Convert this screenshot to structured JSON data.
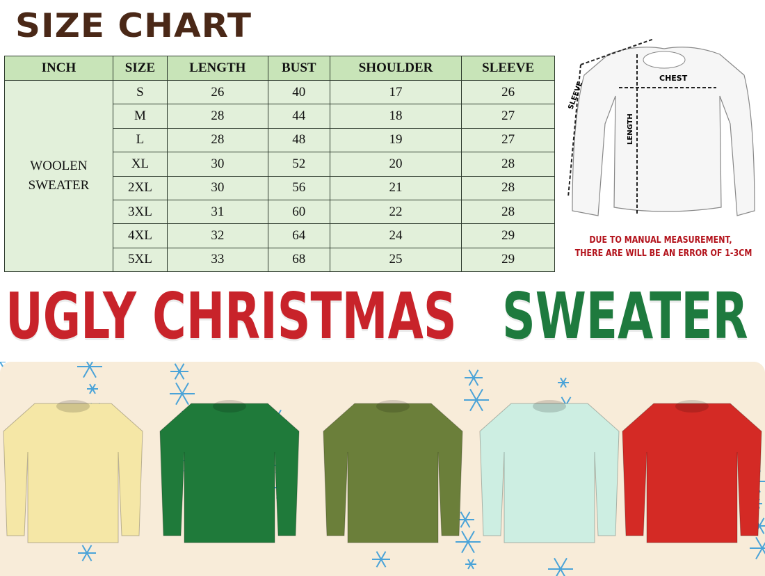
{
  "title": "SIZE CHART",
  "table": {
    "headers": [
      "INCH",
      "SIZE",
      "LENGTH",
      "BUST",
      "SHOULDER",
      "SLEEVE"
    ],
    "category_line1": "WOOLEN",
    "category_line2": "SWEATER",
    "rows": [
      [
        "S",
        "26",
        "40",
        "17",
        "26"
      ],
      [
        "M",
        "28",
        "44",
        "18",
        "27"
      ],
      [
        "L",
        "28",
        "48",
        "19",
        "27"
      ],
      [
        "XL",
        "30",
        "52",
        "20",
        "28"
      ],
      [
        "2XL",
        "30",
        "56",
        "21",
        "28"
      ],
      [
        "3XL",
        "31",
        "60",
        "22",
        "28"
      ],
      [
        "4XL",
        "32",
        "64",
        "24",
        "29"
      ],
      [
        "5XL",
        "33",
        "68",
        "25",
        "29"
      ]
    ]
  },
  "diagram": {
    "chest": "CHEST",
    "length": "LENGTH",
    "sleeve": "SLEEVE"
  },
  "note": {
    "line1": "DUE TO MANUAL MEASUREMENT,",
    "line2": "THERE ARE WILL BE AN ERROR OF 1-3CM"
  },
  "banner": {
    "part1": "UGLY CHRISTMAS",
    "part2": "SWEATER",
    "color1": "#c8232a",
    "color2": "#1e7a3e"
  },
  "sweaters": [
    {
      "name": "christmas-tree-sweater",
      "color": "#f5e7a6"
    },
    {
      "name": "polar-bear-sweater",
      "color": "#1f7a3a"
    },
    {
      "name": "reindeer-sweater",
      "color": "#6b7f3a"
    },
    {
      "name": "fair-isle-sweater",
      "color": "#cdeee2"
    },
    {
      "name": "elf-sweater",
      "color": "#d42a25"
    }
  ]
}
